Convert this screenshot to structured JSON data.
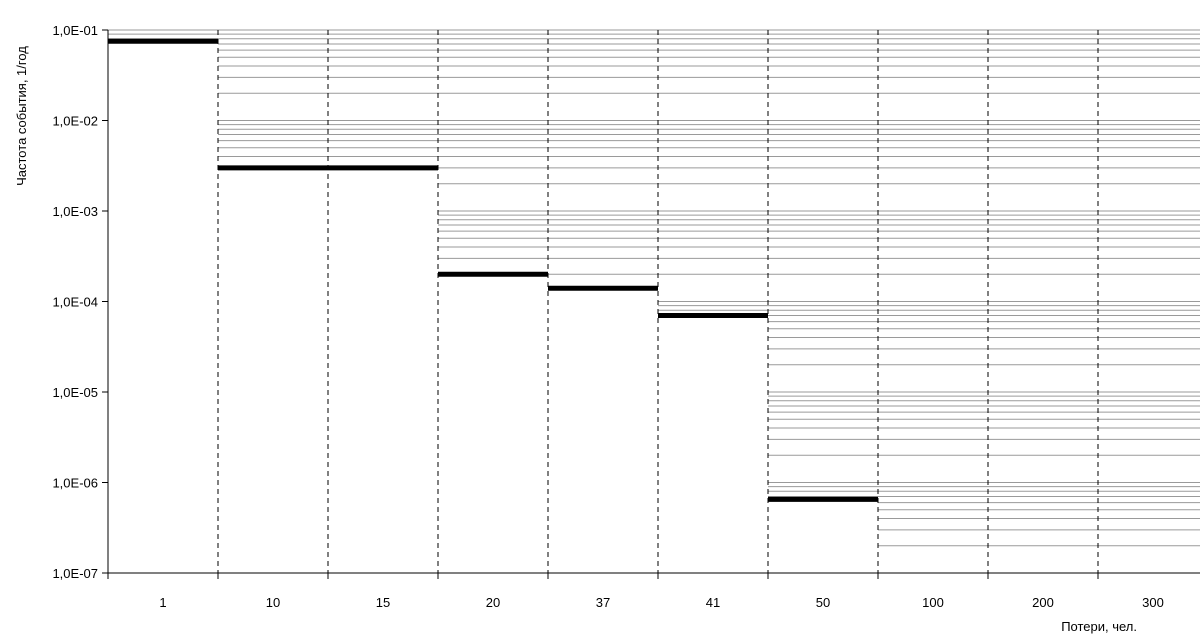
{
  "chart_data": {
    "type": "line",
    "subtype": "step",
    "title": "",
    "xlabel": "Потери, чел.",
    "ylabel": "Частота события, 1/год",
    "y_scale": "log",
    "ylim": [
      1e-07,
      0.1
    ],
    "y_ticks": [
      {
        "value": 0.1,
        "label": "1,0E-01"
      },
      {
        "value": 0.01,
        "label": "1,0E-02"
      },
      {
        "value": 0.001,
        "label": "1,0E-03"
      },
      {
        "value": 0.0001,
        "label": "1,0E-04"
      },
      {
        "value": 1e-05,
        "label": "1,0E-05"
      },
      {
        "value": 1e-06,
        "label": "1,0E-06"
      },
      {
        "value": 1e-07,
        "label": "1,0E-07"
      }
    ],
    "categories": [
      "1",
      "10",
      "15",
      "20",
      "37",
      "41",
      "50",
      "100",
      "200",
      "300"
    ],
    "series": [
      {
        "color": "#000000",
        "steps": [
          {
            "category": "1",
            "value": 0.075
          },
          {
            "category": "10",
            "value": 0.003
          },
          {
            "category": "15",
            "value": 0.003
          },
          {
            "category": "20",
            "value": 0.0002
          },
          {
            "category": "37",
            "value": 0.00014
          },
          {
            "category": "41",
            "value": 7e-05
          },
          {
            "category": "50",
            "value": 6.5e-07
          }
        ]
      }
    ],
    "grid": {
      "y_minor": true,
      "x_dashed": true
    },
    "legend": "none",
    "colors": {
      "grid": "#9a9a9a",
      "series": "#000000",
      "axis": "#000000"
    }
  }
}
